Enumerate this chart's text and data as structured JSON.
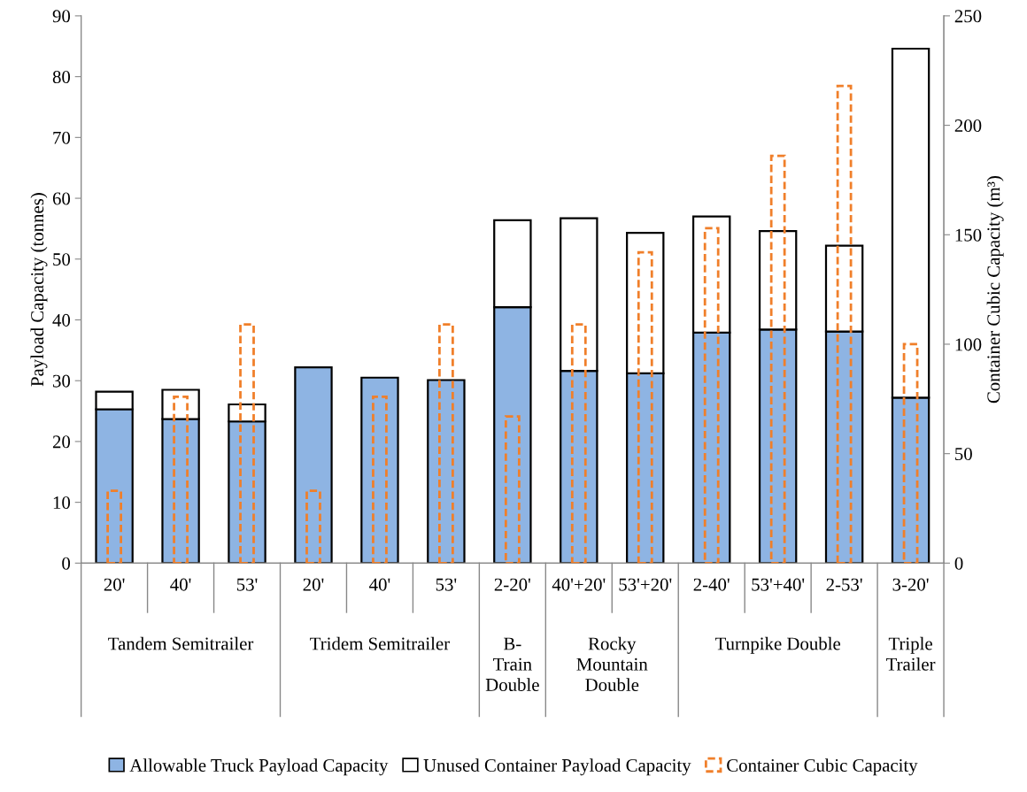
{
  "chart_data": {
    "type": "bar",
    "stacked": true,
    "categories": [
      "20'",
      "40'",
      "53'",
      "20'",
      "40'",
      "53'",
      "2-20'",
      "40'+20'",
      "53'+20'",
      "2-40'",
      "53'+40'",
      "2-53'",
      "3-20'"
    ],
    "series": [
      {
        "name": "Allowable Truck Payload Capacity",
        "color": "#8eb4e3",
        "values": [
          25.3,
          23.7,
          23.3,
          32.2,
          30.5,
          30.1,
          42.1,
          31.6,
          31.2,
          37.9,
          38.4,
          38.1,
          27.2
        ]
      },
      {
        "name": "Unused Container Payload Capacity",
        "color": "#ffffff",
        "values": [
          2.9,
          4.8,
          2.8,
          null,
          null,
          null,
          14.3,
          25.1,
          23.1,
          19.1,
          16.2,
          14.1,
          57.4
        ]
      },
      {
        "name": "Container Cubic Capacity",
        "color": "#f07f2a",
        "type": "bar",
        "axis": "y2",
        "line_style": "dashed",
        "values": [
          33,
          76,
          109,
          33,
          76,
          109,
          67,
          109,
          142,
          153,
          186,
          218,
          100
        ]
      }
    ],
    "ylabel": "Payload Capacity (tonnes)",
    "y2label": "Container Cubic Capacity (m³)",
    "ylim": [
      0,
      90
    ],
    "yticks": [
      0,
      10,
      20,
      30,
      40,
      50,
      60,
      70,
      80,
      90
    ],
    "y2lim": [
      0,
      250
    ],
    "y2ticks": [
      0,
      50,
      100,
      150,
      200,
      250
    ],
    "annotations": [
      "Tandem Semitrailer",
      "Tridem Semitrailer",
      "B-\nTrain\nDouble",
      "Rocky\nMountain\nDouble",
      "Turnpike Double",
      "Triple\nTrailer"
    ],
    "grid": false,
    "legend": "bottom"
  }
}
